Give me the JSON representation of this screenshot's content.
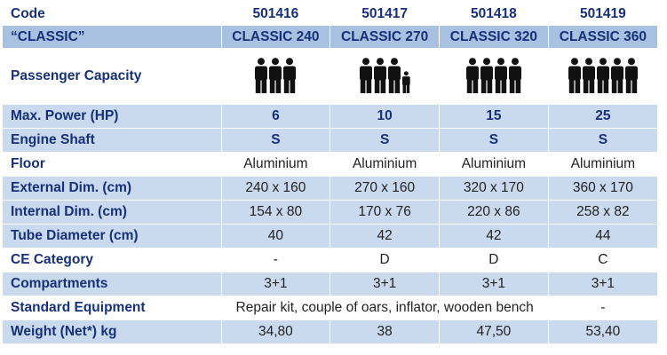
{
  "header": {
    "code_label": "Code",
    "series_label": "“CLASSIC”",
    "models": [
      {
        "code": "501416",
        "name": "CLASSIC 240",
        "adults": 3,
        "children": 0
      },
      {
        "code": "501417",
        "name": "CLASSIC 270",
        "adults": 3,
        "children": 1
      },
      {
        "code": "501418",
        "name": "CLASSIC 320",
        "adults": 4,
        "children": 0
      },
      {
        "code": "501419",
        "name": "CLASSIC 360",
        "adults": 5,
        "children": 0
      }
    ]
  },
  "capacity_label": "Passenger Capacity",
  "icon": "passenger-person-icon",
  "colors": {
    "label_text": "#17307a",
    "header_band": "#a8c1e0",
    "row_band": "#c9d9ee",
    "icon": "#111111"
  },
  "rows": [
    {
      "label": "Max. Power (HP)",
      "values": [
        "6",
        "10",
        "15",
        "25"
      ]
    },
    {
      "label": "Engine Shaft",
      "values": [
        "S",
        "S",
        "S",
        "S"
      ]
    },
    {
      "label": "Floor",
      "values": [
        "Aluminium",
        "Aluminium",
        "Aluminium",
        "Aluminium"
      ]
    },
    {
      "label": "External Dim. (cm)",
      "values": [
        "240 x 160",
        "270 x 160",
        "320 x 170",
        "360 x 170"
      ]
    },
    {
      "label": "Internal Dim. (cm)",
      "values": [
        "154 x 80",
        "170 x 76",
        "220 x 86",
        "258 x 82"
      ]
    },
    {
      "label": "Tube Diameter (cm)",
      "values": [
        "40",
        "42",
        "42",
        "44"
      ]
    },
    {
      "label": "CE Category",
      "values": [
        "-",
        "D",
        "D",
        "C"
      ]
    },
    {
      "label": "Compartments",
      "values": [
        "3+1",
        "3+1",
        "3+1",
        "3+1"
      ]
    }
  ],
  "standard_equipment": {
    "label": "Standard Equipment",
    "shared_value": "Repair kit, couple of oars, inflator, wooden bench",
    "last_value": "-"
  },
  "weight": {
    "label": "Weight (Net*) kg",
    "values": [
      "34,80",
      "38",
      "47,50",
      "53,40"
    ]
  }
}
